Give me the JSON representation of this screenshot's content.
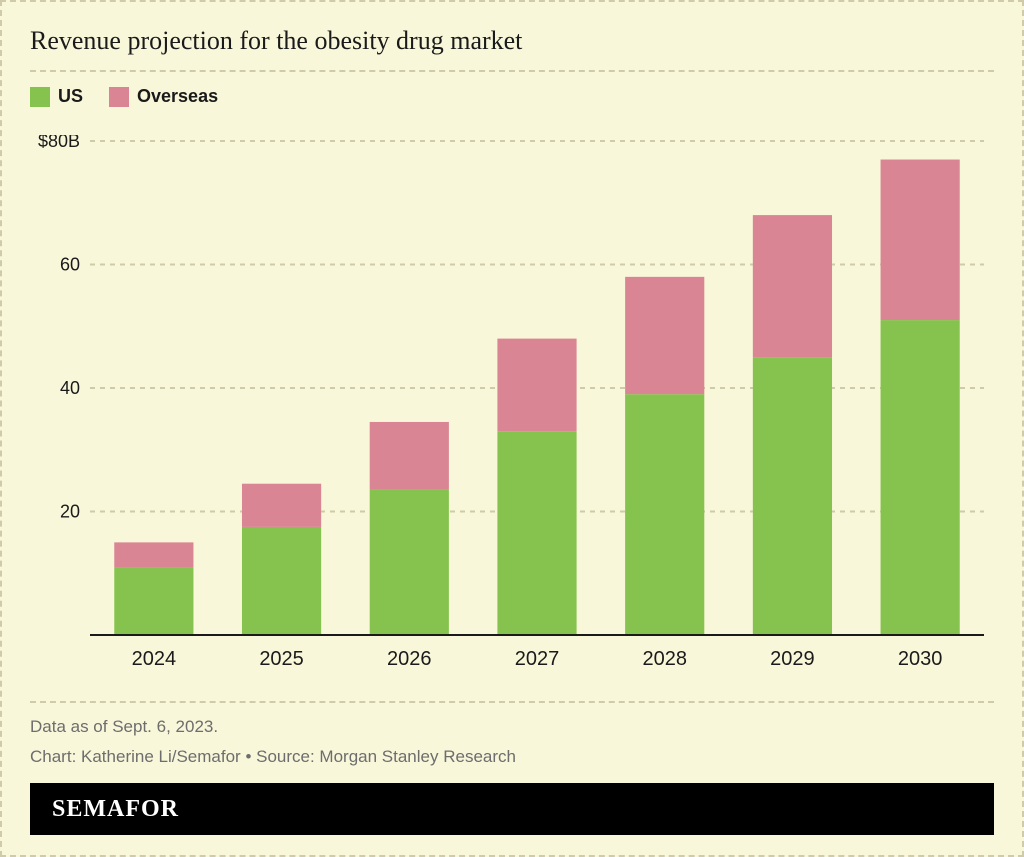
{
  "background_color": "#f9f7da",
  "border_color": "#cfcba8",
  "text_color": "#1a1a1a",
  "muted_text_color": "#6d6d6d",
  "title": "Revenue projection for the obesity drug market",
  "legend": {
    "items": [
      {
        "label": "US",
        "color": "#86c34e"
      },
      {
        "label": "Overseas",
        "color": "#d98594"
      }
    ],
    "font_size": 18,
    "font_weight": 600
  },
  "chart": {
    "type": "stacked-bar",
    "categories": [
      "2024",
      "2025",
      "2026",
      "2027",
      "2028",
      "2029",
      "2030"
    ],
    "series": [
      {
        "name": "US",
        "color": "#86c34e",
        "values": [
          11,
          17.5,
          23.5,
          33,
          39,
          45,
          51
        ]
      },
      {
        "name": "Overseas",
        "color": "#d98594",
        "values": [
          4,
          7,
          11,
          15,
          19,
          23,
          26
        ]
      }
    ],
    "ylim": [
      0,
      80
    ],
    "ytick_step": 20,
    "y_tick_labels": [
      "20",
      "40",
      "60",
      "$80B"
    ],
    "grid_color": "#cfcba8",
    "grid_dash": "5 5",
    "axis_color": "#1a1a1a",
    "bar_width_ratio": 0.62,
    "x_label_fontsize": 20,
    "y_label_fontsize": 18,
    "plot_bg": "#f9f7da"
  },
  "footnotes": {
    "data_asof": "Data as of Sept. 6, 2023.",
    "credit": "Chart: Katherine Li/Semafor • Source: Morgan Stanley Research"
  },
  "brand": {
    "name": "SEMAFOR",
    "bar_bg": "#000000",
    "text_color": "#ffffff",
    "font_size": 24,
    "letter_spacing": 1
  }
}
